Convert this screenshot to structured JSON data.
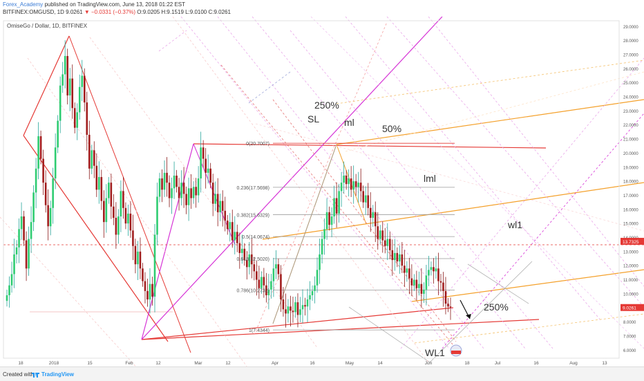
{
  "header": {
    "author": "Forex_Academy",
    "published": "published on TradingView.com, June 13, 2018 01:22 EST",
    "symbol": "BITFINEX:OMGUSD, 1D",
    "last": "9.0261",
    "change": "−0.0331 (−0.37%)",
    "ohlc": "O:9.0205 H:9.1519 L:9.0100 C:9.0261"
  },
  "chart_data": {
    "type": "candlestick",
    "title": "OmiseGo / Dollar, 1D, BITFINEX",
    "ylim": [
      6.0,
      29.5
    ],
    "y_ticks": [
      "6.0000",
      "7.0000",
      "8.0000",
      "9.0000",
      "10.0000",
      "11.0000",
      "12.0000",
      "13.0000",
      "14.0000",
      "15.0000",
      "16.0000",
      "17.0000",
      "18.0000",
      "19.0000",
      "20.0000",
      "21.0000",
      "22.0000",
      "23.0000",
      "24.0000",
      "25.0000",
      "26.0000",
      "27.0000",
      "28.0000",
      "29.0000"
    ],
    "x_ticks": [
      "18",
      "2018",
      "15",
      "Feb",
      "12",
      "Mar",
      "12",
      "Apr",
      "16",
      "May",
      "14",
      "Jun",
      "18",
      "Jul",
      "16",
      "Aug",
      "13"
    ],
    "price_labels": [
      {
        "text": "13.7325",
        "value": 13.7325,
        "color": "#e53935"
      },
      {
        "text": "9.0261",
        "value": 9.0261,
        "color": "#e53935"
      }
    ],
    "fib_levels": [
      {
        "text": "0(20.7007)",
        "value": 20.7007
      },
      {
        "text": "0.236(17.5698)",
        "value": 17.5698
      },
      {
        "text": "0.382(15.6329)",
        "value": 15.6329
      },
      {
        "text": "0.5(14.0674)",
        "value": 14.0674
      },
      {
        "text": "0.618(12.5020)",
        "value": 12.502
      },
      {
        "text": "0.786(10.2732)",
        "value": 10.2732
      },
      {
        "text": "1(7.4344)",
        "value": 7.4344
      }
    ],
    "annotations": [
      "250%",
      "SL",
      "ml",
      "50%",
      "lml",
      "wl1",
      "250%",
      "WL1"
    ],
    "candles_close": [
      9.9,
      10.6,
      11.4,
      12.8,
      13.3,
      14.6,
      15.5,
      13.8,
      11.8,
      13.9,
      15.1,
      17.2,
      18.9,
      21.2,
      19.6,
      17.9,
      16.3,
      14.8,
      16.1,
      18.2,
      20.4,
      22.3,
      24.8,
      25.6,
      26.9,
      24.1,
      25.3,
      23.2,
      21.8,
      22.9,
      24.7,
      25.5,
      23.6,
      21.3,
      18.9,
      20.2,
      19.1,
      17.4,
      18.3,
      16.6,
      15.1,
      16.8,
      17.9,
      16.2,
      15.4,
      14.2,
      15.5,
      17.3,
      16.1,
      15.0,
      15.7,
      14.5,
      13.4,
      12.1,
      13.0,
      11.8,
      10.9,
      10.2,
      9.6,
      10.7,
      9.8,
      14.2,
      16.9,
      18.2,
      17.4,
      18.6,
      17.9,
      16.8,
      17.5,
      18.4,
      17.6,
      16.8,
      17.9,
      17.1,
      16.3,
      17.5,
      16.8,
      17.6,
      17.0,
      18.2,
      20.4,
      19.6,
      18.6,
      18.9,
      17.9,
      16.4,
      17.1,
      15.8,
      16.6,
      15.9,
      15.2,
      14.6,
      15.1,
      13.8,
      14.4,
      13.6,
      12.9,
      13.2,
      12.4,
      11.9,
      12.8,
      12.1,
      11.6,
      11.0,
      10.4,
      11.2,
      10.6,
      9.9,
      10.3,
      10.9,
      11.8,
      12.1,
      11.4,
      9.6,
      8.9,
      8.6,
      9.1,
      8.8,
      8.7,
      9.4,
      8.5,
      8.9,
      9.2,
      9.1,
      9.6,
      9.9,
      10.2,
      10.6,
      11.7,
      12.8,
      13.9,
      14.6,
      15.8,
      14.9,
      15.5,
      16.8,
      15.7,
      17.3,
      17.9,
      18.4,
      17.8,
      18.2,
      17.4,
      18.0,
      17.6,
      17.9,
      17.3,
      16.5,
      17.0,
      16.1,
      15.4,
      15.8,
      14.8,
      13.9,
      14.5,
      13.8,
      13.4,
      13.9,
      13.1,
      12.4,
      12.9,
      12.3,
      12.8,
      12.0,
      11.5,
      11.8,
      11.1,
      10.6,
      11.0,
      10.4,
      10.7,
      10.0,
      10.3,
      11.3,
      11.7,
      11.9,
      11.6,
      11.8,
      10.9,
      10.8,
      10.2,
      9.3,
      9.1,
      9.03
    ]
  },
  "footer": {
    "created": "Created with",
    "brand": "TradingView"
  }
}
